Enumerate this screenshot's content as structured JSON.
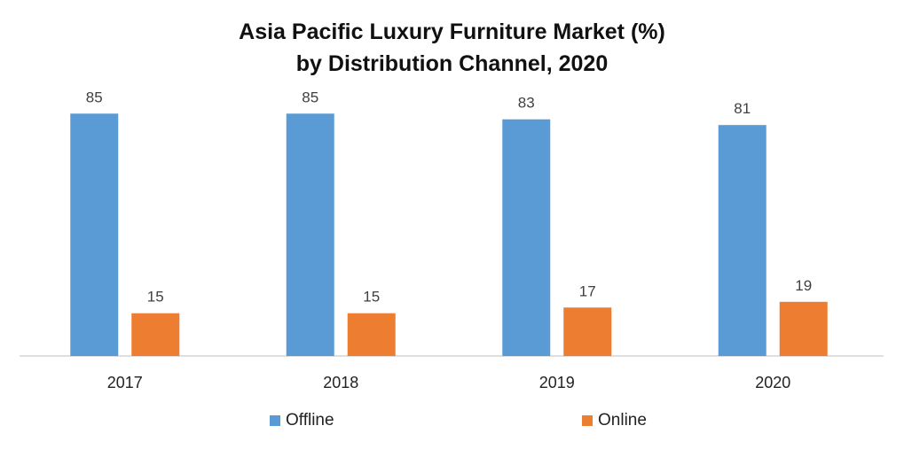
{
  "chart_data": {
    "type": "bar",
    "title": "Asia Pacific Luxury Furniture Market (%)",
    "subtitle": "by Distribution Channel, 2020",
    "xlabel": "",
    "ylabel": "",
    "categories": [
      "2017",
      "2018",
      "2019",
      "2020"
    ],
    "series": [
      {
        "name": "Offline",
        "values": [
          85,
          85,
          83,
          81
        ],
        "color": "#5b9bd5"
      },
      {
        "name": "Online",
        "values": [
          15,
          15,
          17,
          19
        ],
        "color": "#ed7d31"
      }
    ],
    "ylim": [
      0,
      100
    ],
    "grid": false,
    "legend": "bottom"
  }
}
